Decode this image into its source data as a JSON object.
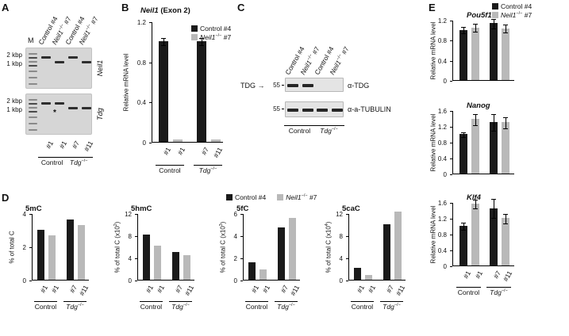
{
  "figure": {
    "colors": {
      "control": "#1a1a1a",
      "neil1": "#b9b9b9"
    },
    "legend_items": [
      {
        "color": "control",
        "label": [
          {
            "x": "Control #4"
          }
        ]
      },
      {
        "color": "neil1",
        "label": [
          {
            "i": "Neil1"
          },
          {
            "sup": "−/−"
          },
          {
            "x": " #7"
          }
        ]
      }
    ]
  },
  "panel_a": {
    "label": "A",
    "marker_lane": "M",
    "top_labels": [
      [
        {
          "x": "Control #4"
        }
      ],
      [
        {
          "i": "Neil1"
        },
        {
          "sup": "−/−"
        },
        {
          "x": " #7"
        }
      ],
      [
        {
          "x": "Control #4"
        }
      ],
      [
        {
          "i": "Neil1"
        },
        {
          "sup": "−/−"
        },
        {
          "x": " #7"
        }
      ]
    ],
    "gels": [
      {
        "gene": [
          {
            "i": "Neil1"
          }
        ],
        "sizes": [
          "2 kbp",
          "1 kbp"
        ],
        "pattern": [
          "high",
          "low",
          "high",
          "low"
        ]
      },
      {
        "gene": [
          {
            "i": "Tdg"
          }
        ],
        "sizes": [
          "2 kbp",
          "1 kbp"
        ],
        "pattern": [
          "high",
          "high",
          "low",
          "low"
        ],
        "asterisk": "*"
      }
    ],
    "bottom_labels": [
      "#1",
      "#1",
      "#7",
      "#11"
    ],
    "groups": [
      [
        {
          "x": "Control"
        }
      ],
      [
        {
          "i": "Tdg"
        },
        {
          "sup": "−/−"
        }
      ]
    ]
  },
  "panel_b": {
    "label": "B"
  },
  "panel_c": {
    "label": "C",
    "top_labels": [
      [
        {
          "x": "Control #4"
        }
      ],
      [
        {
          "i": "Neil1"
        },
        {
          "sup": "−/−"
        },
        {
          "x": " #7"
        }
      ],
      [
        {
          "x": "Control #4"
        }
      ],
      [
        {
          "i": "Neil1"
        },
        {
          "sup": "−/−"
        },
        {
          "x": " #7"
        }
      ]
    ],
    "blots": [
      {
        "mw": "55",
        "label_left": "TDG →",
        "antibody": [
          {
            "x": "α-TDG"
          }
        ],
        "bands": [
          1,
          1,
          0,
          0
        ]
      },
      {
        "mw": "55",
        "antibody": [
          {
            "x": "α-a-TUBULIN"
          }
        ],
        "bands": [
          1,
          1,
          1,
          1
        ]
      }
    ],
    "groups": [
      [
        {
          "x": "Control"
        }
      ],
      [
        {
          "i": "Tdg"
        },
        {
          "sup": "−/−"
        }
      ]
    ]
  },
  "panel_d": {
    "label": "D"
  },
  "panel_e": {
    "label": "E"
  },
  "chart_data": [
    {
      "id": "neil1_exon2_mrna",
      "type": "bar",
      "title": [
        {
          "i": "Neil1"
        },
        {
          "x": " (Exon 2)"
        }
      ],
      "ylabel": [
        {
          "x": "Relative mRNA level"
        }
      ],
      "ylim": [
        0,
        1.2
      ],
      "yticks": [
        0,
        0.4,
        0.8,
        1.2
      ],
      "categories": [
        "#1",
        "#1",
        "#7",
        "#11"
      ],
      "values": [
        1.0,
        0.02,
        1.0,
        0.02
      ],
      "errors": [
        0.04,
        0,
        0.04,
        0
      ],
      "bar_colors": [
        "control",
        "neil1",
        "control",
        "neil1"
      ],
      "legend": [
        "Control #4",
        "Neil1−/− #7"
      ],
      "groups": [
        [
          {
            "x": "Control"
          }
        ],
        [
          {
            "i": "Tdg"
          },
          {
            "sup": "−/−"
          }
        ]
      ]
    },
    {
      "id": "5mC",
      "type": "bar",
      "title": [
        {
          "x": "5mC"
        }
      ],
      "ylabel": [
        {
          "x": "% of total C"
        }
      ],
      "ylim": [
        0,
        4
      ],
      "yticks": [
        0,
        2,
        4
      ],
      "categories": [
        "#1",
        "#1",
        "#7",
        "#11"
      ],
      "values": [
        3.0,
        2.65,
        3.6,
        3.3
      ],
      "errors": null,
      "bar_colors": [
        "control",
        "neil1",
        "control",
        "neil1"
      ],
      "legend": [
        "Control #4",
        "Neil1−/− #7"
      ],
      "groups": [
        [
          {
            "x": "Control"
          }
        ],
        [
          {
            "i": "Tdg"
          },
          {
            "sup": "−/−"
          }
        ]
      ]
    },
    {
      "id": "5hmC",
      "type": "bar",
      "title": [
        {
          "x": "5hmC"
        }
      ],
      "ylabel": [
        {
          "x": "% of total C (x10"
        },
        {
          "sup": "2"
        },
        {
          "x": ")"
        }
      ],
      "ylim": [
        0,
        12
      ],
      "yticks": [
        0,
        4,
        8,
        12
      ],
      "categories": [
        "#1",
        "#1",
        "#7",
        "#11"
      ],
      "values": [
        8.2,
        6.1,
        5.0,
        4.4
      ],
      "errors": null,
      "bar_colors": [
        "control",
        "neil1",
        "control",
        "neil1"
      ],
      "legend": [
        "Control #4",
        "Neil1−/− #7"
      ],
      "groups": [
        [
          {
            "x": "Control"
          }
        ],
        [
          {
            "i": "Tdg"
          },
          {
            "sup": "−/−"
          }
        ]
      ]
    },
    {
      "id": "5fC",
      "type": "bar",
      "title": [
        {
          "x": "5fC"
        }
      ],
      "ylabel": [
        {
          "x": "% of total C (x10"
        },
        {
          "sup": "3"
        },
        {
          "x": ")"
        }
      ],
      "ylim": [
        0,
        6
      ],
      "yticks": [
        0,
        2,
        4,
        6
      ],
      "categories": [
        "#1",
        "#1",
        "#7",
        "#11"
      ],
      "values": [
        1.6,
        0.9,
        4.7,
        5.6
      ],
      "errors": null,
      "bar_colors": [
        "control",
        "neil1",
        "control",
        "neil1"
      ],
      "legend": [
        "Control #4",
        "Neil1−/− #7"
      ],
      "groups": [
        [
          {
            "x": "Control"
          }
        ],
        [
          {
            "i": "Tdg"
          },
          {
            "sup": "−/−"
          }
        ]
      ]
    },
    {
      "id": "5caC",
      "type": "bar",
      "title": [
        {
          "x": "5caC"
        }
      ],
      "ylabel": [
        {
          "x": "% of total C (x10"
        },
        {
          "sup": "4"
        },
        {
          "x": ")"
        }
      ],
      "ylim": [
        0,
        12
      ],
      "yticks": [
        0,
        4,
        8,
        12
      ],
      "categories": [
        "#1",
        "#1",
        "#7",
        "#11"
      ],
      "values": [
        2.1,
        0.9,
        10.0,
        12.3
      ],
      "errors": null,
      "bar_colors": [
        "control",
        "neil1",
        "control",
        "neil1"
      ],
      "legend": [
        "Control #4",
        "Neil1−/− #7"
      ],
      "groups": [
        [
          {
            "x": "Control"
          }
        ],
        [
          {
            "i": "Tdg"
          },
          {
            "sup": "−/−"
          }
        ]
      ]
    },
    {
      "id": "Pou5f1",
      "type": "bar",
      "title": [
        {
          "i": "Pou5f1"
        }
      ],
      "ylabel": [
        {
          "x": "Relative mRNA level"
        }
      ],
      "ylim": [
        0,
        1.2
      ],
      "yticks": [
        0,
        0.4,
        0.8,
        1.2
      ],
      "categories": [
        "#1",
        "#1",
        "#7",
        "#11"
      ],
      "values": [
        1.0,
        1.05,
        1.13,
        1.03
      ],
      "errors": [
        0.07,
        0.09,
        0.1,
        0.09
      ],
      "bar_colors": [
        "control",
        "neil1",
        "control",
        "neil1"
      ],
      "legend": [
        "Control #4",
        "Neil1−/− #7"
      ],
      "groups": [
        [
          {
            "x": "Control"
          }
        ],
        [
          {
            "i": "Tdg"
          },
          {
            "sup": "−/−"
          }
        ]
      ]
    },
    {
      "id": "Nanog",
      "type": "bar",
      "title": [
        {
          "i": "Nanog"
        }
      ],
      "ylabel": [
        {
          "x": "Relative mRNA level"
        }
      ],
      "ylim": [
        0,
        1.6
      ],
      "yticks": [
        0,
        0.4,
        0.8,
        1.2,
        1.6
      ],
      "categories": [
        "#1",
        "#1",
        "#7",
        "#11"
      ],
      "values": [
        1.0,
        1.38,
        1.3,
        1.3
      ],
      "errors": [
        0.07,
        0.15,
        0.22,
        0.15
      ],
      "bar_colors": [
        "control",
        "neil1",
        "control",
        "neil1"
      ],
      "legend": [
        "Control #4",
        "Neil1−/− #7"
      ],
      "groups": [
        [
          {
            "x": "Control"
          }
        ],
        [
          {
            "i": "Tdg"
          },
          {
            "sup": "−/−"
          }
        ]
      ]
    },
    {
      "id": "Klf4",
      "type": "bar",
      "title": [
        {
          "i": "Klf4"
        }
      ],
      "ylabel": [
        {
          "x": "Relative mRNA level"
        }
      ],
      "ylim": [
        0,
        1.6
      ],
      "yticks": [
        0,
        0.4,
        0.8,
        1.2,
        1.6
      ],
      "categories": [
        "#1",
        "#1",
        "#7",
        "#11"
      ],
      "values": [
        1.0,
        1.57,
        1.45,
        1.2
      ],
      "errors": [
        0.1,
        0.12,
        0.25,
        0.13
      ],
      "bar_colors": [
        "control",
        "neil1",
        "control",
        "neil1"
      ],
      "legend": [
        "Control #4",
        "Neil1−/− #7"
      ],
      "groups": [
        [
          {
            "x": "Control"
          }
        ],
        [
          {
            "i": "Tdg"
          },
          {
            "sup": "−/−"
          }
        ]
      ]
    }
  ]
}
